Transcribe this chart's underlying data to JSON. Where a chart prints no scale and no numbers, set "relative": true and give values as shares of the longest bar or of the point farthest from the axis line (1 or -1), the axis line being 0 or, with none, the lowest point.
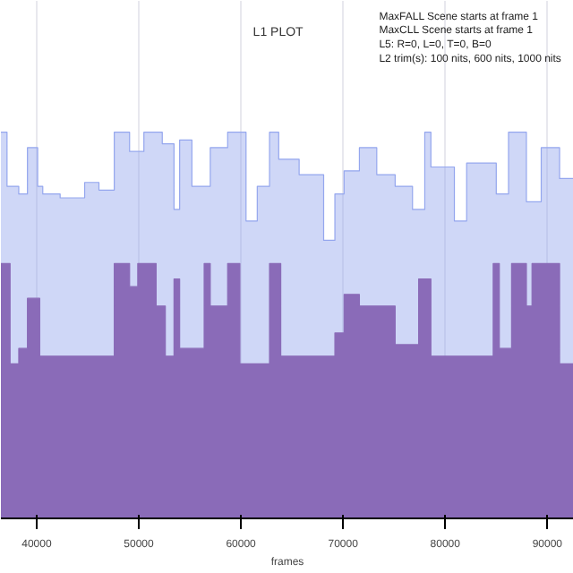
{
  "chart_data": {
    "type": "area",
    "title": "L1 PLOT",
    "xlabel": "frames",
    "annotations": [
      "MaxFALL Scene starts at frame 1",
      "MaxCLL Scene starts at frame 1",
      "L5: R=0, L=0, T=0, B=0",
      "L2 trim(s): 100 nits, 600 nits, 1000 nits"
    ],
    "relative": true,
    "xlim": [
      36500,
      92600
    ],
    "xticks": [
      40000,
      50000,
      60000,
      70000,
      80000,
      90000
    ],
    "grid": "x",
    "series": [
      {
        "color": "#94a6ee",
        "x": [
          36500,
          37100,
          37100,
          38250,
          38250,
          39100,
          39100,
          40100,
          40100,
          40600,
          40600,
          42300,
          42300,
          44700,
          44700,
          46100,
          46100,
          47600,
          47600,
          49100,
          49100,
          50500,
          50500,
          52300,
          52300,
          53450,
          53450,
          54000,
          54000,
          55200,
          55200,
          57000,
          57000,
          58700,
          58700,
          60500,
          60500,
          61600,
          61600,
          62800,
          62800,
          63700,
          63700,
          65700,
          65700,
          68100,
          68100,
          69200,
          69200,
          70100,
          70100,
          71600,
          71600,
          73300,
          73300,
          75100,
          75100,
          76800,
          76800,
          78000,
          78000,
          78600,
          78600,
          80900,
          80900,
          82100,
          82100,
          85000,
          85000,
          86200,
          86200,
          87950,
          87950,
          89400,
          89400,
          91200,
          91200,
          92600
        ],
        "values": [
          1.0,
          1.0,
          0.86,
          0.86,
          0.84,
          0.84,
          0.96,
          0.96,
          0.86,
          0.86,
          0.84,
          0.84,
          0.83,
          0.83,
          0.87,
          0.87,
          0.85,
          0.85,
          1.0,
          1.0,
          0.95,
          0.95,
          1.0,
          1.0,
          0.97,
          0.97,
          0.8,
          0.8,
          0.98,
          0.98,
          0.86,
          0.86,
          0.96,
          0.96,
          1.0,
          1.0,
          0.77,
          0.77,
          0.86,
          0.86,
          1.0,
          1.0,
          0.93,
          0.93,
          0.89,
          0.89,
          0.72,
          0.72,
          0.84,
          0.84,
          0.9,
          0.9,
          0.96,
          0.96,
          0.89,
          0.89,
          0.86,
          0.86,
          0.8,
          0.8,
          1.0,
          1.0,
          0.91,
          0.91,
          0.77,
          0.77,
          0.92,
          0.92,
          0.84,
          0.84,
          1.0,
          1.0,
          0.82,
          0.82,
          0.96,
          0.96,
          0.88,
          0.88
        ]
      },
      {
        "color": "#8a6bb8",
        "x": [
          36500,
          37400,
          37400,
          38250,
          38250,
          39100,
          39100,
          40300,
          40300,
          47600,
          47600,
          49100,
          49100,
          49900,
          49900,
          51700,
          51700,
          52600,
          52600,
          53450,
          53450,
          54000,
          54000,
          56400,
          56400,
          57000,
          57000,
          58700,
          58700,
          59900,
          59900,
          62800,
          62800,
          63900,
          63900,
          69200,
          69200,
          70100,
          70100,
          71600,
          71600,
          75100,
          75100,
          77400,
          77400,
          78600,
          78600,
          84700,
          84700,
          85300,
          85300,
          86500,
          86500,
          87950,
          87950,
          88500,
          88500,
          91200,
          91200,
          92600
        ],
        "values": [
          0.66,
          0.66,
          0.4,
          0.4,
          0.44,
          0.44,
          0.57,
          0.57,
          0.42,
          0.42,
          0.66,
          0.66,
          0.6,
          0.6,
          0.66,
          0.66,
          0.55,
          0.55,
          0.42,
          0.42,
          0.62,
          0.62,
          0.44,
          0.44,
          0.66,
          0.66,
          0.55,
          0.55,
          0.66,
          0.66,
          0.4,
          0.4,
          0.66,
          0.66,
          0.42,
          0.42,
          0.48,
          0.48,
          0.58,
          0.58,
          0.55,
          0.55,
          0.45,
          0.45,
          0.62,
          0.62,
          0.42,
          0.42,
          0.66,
          0.66,
          0.44,
          0.44,
          0.66,
          0.66,
          0.55,
          0.55,
          0.66,
          0.66,
          0.4,
          0.4
        ]
      }
    ]
  }
}
